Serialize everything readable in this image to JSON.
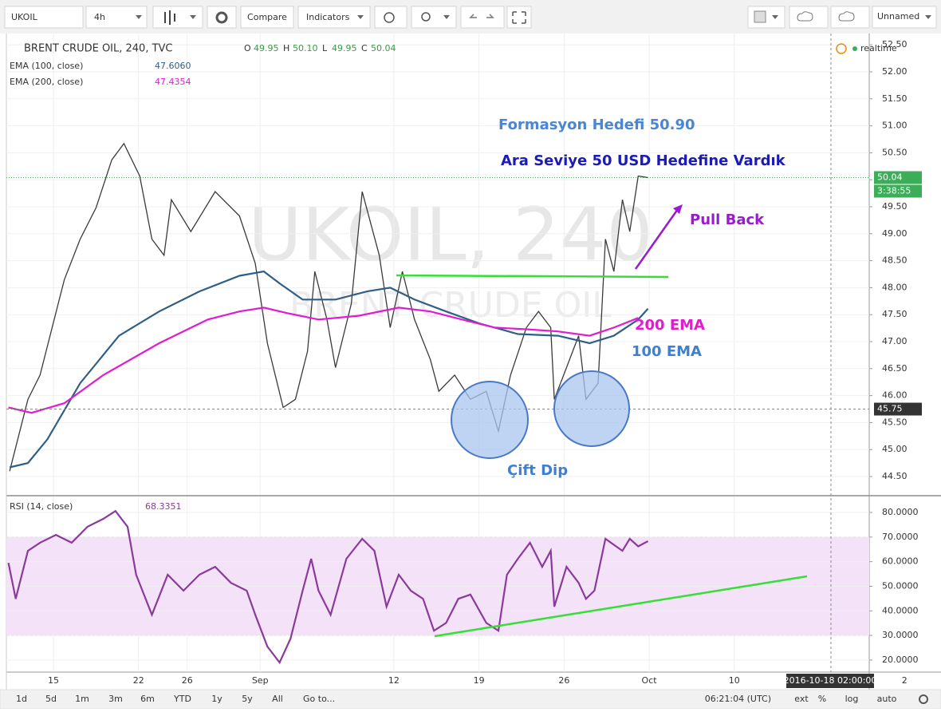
{
  "toolbar": {
    "symbol": "UKOIL",
    "interval": "4h",
    "compare": "Compare",
    "indicators": "Indicators",
    "layout": "Unnamed"
  },
  "chart_data": [
    {
      "type": "line",
      "title": "BRENT CRUDE OIL, 240, TVC",
      "ohlc": [
        {
          "label": "O",
          "value": "49.95"
        },
        {
          "label": "H",
          "value": "50.10"
        },
        {
          "label": "L",
          "value": "49.95"
        },
        {
          "label": "C",
          "value": "50.04"
        }
      ],
      "status": "realtime",
      "watermark": {
        "symbol": "UKOIL, 240",
        "name": "BRENT CRUDE OIL"
      },
      "xlim": [
        11.13,
        82.1
      ],
      "xticks": [
        {
          "value": 15,
          "label": "15"
        },
        {
          "value": 22,
          "label": "22"
        },
        {
          "value": 26,
          "label": "26"
        },
        {
          "value": 32,
          "label": "Sep"
        },
        {
          "value": 43,
          "label": "12"
        },
        {
          "value": 50,
          "label": "19"
        },
        {
          "value": 57,
          "label": "26"
        },
        {
          "value": 64,
          "label": "Oct"
        },
        {
          "value": 71,
          "label": "10"
        },
        {
          "value": 85,
          "label": "2"
        }
      ],
      "ylim": [
        44.16,
        52.71
      ],
      "yticks": [
        {
          "value": 44.5,
          "label": "44.50"
        },
        {
          "value": 45,
          "label": "45.00"
        },
        {
          "value": 45.5,
          "label": "45.50"
        },
        {
          "value": 46,
          "label": "46.00"
        },
        {
          "value": 46.5,
          "label": "46.50"
        },
        {
          "value": 47,
          "label": "47.00"
        },
        {
          "value": 47.5,
          "label": "47.50"
        },
        {
          "value": 48,
          "label": "48.00"
        },
        {
          "value": 48.5,
          "label": "48.50"
        },
        {
          "value": 49,
          "label": "49.00"
        },
        {
          "value": 49.5,
          "label": "49.50"
        },
        {
          "value": 50,
          "label": "50.00"
        },
        {
          "value": 50.5,
          "label": "50.50"
        },
        {
          "value": 51,
          "label": "51.00"
        },
        {
          "value": 51.5,
          "label": "51.50"
        },
        {
          "value": 52,
          "label": "52.00"
        },
        {
          "value": 52.5,
          "label": "52.50"
        }
      ],
      "grid": true,
      "series": [
        {
          "color": "#3a3a3a",
          "x": [
            11.4,
            12.9,
            13.9,
            15.9,
            17.2,
            18.5,
            19.8,
            20.8,
            22.1,
            23.1,
            24.1,
            24.7,
            26.3,
            28.3,
            30.3,
            31.6,
            32.6,
            33.9,
            34.9,
            35.9,
            36.5,
            37.5,
            38.2,
            39.5,
            40.4,
            41.8,
            42.7,
            43.7,
            44.7,
            46.0,
            46.7,
            48.0,
            49.3,
            50.6,
            51.6,
            52.6,
            53.9,
            54.9,
            55.9,
            56.2,
            57.2,
            58.2,
            58.8,
            59.8,
            60.4,
            61.1,
            61.8,
            62.4,
            63.1,
            63.9
          ],
          "values": [
            44.6,
            45.93,
            46.38,
            48.15,
            48.9,
            49.48,
            50.37,
            50.67,
            50.07,
            48.9,
            48.6,
            49.63,
            49.04,
            49.78,
            49.33,
            48.45,
            46.97,
            45.78,
            45.93,
            46.82,
            48.3,
            47.41,
            46.52,
            47.7,
            49.78,
            48.6,
            47.26,
            48.3,
            47.41,
            46.67,
            46.08,
            46.38,
            45.93,
            46.08,
            45.34,
            46.38,
            47.26,
            47.56,
            47.26,
            45.93,
            46.52,
            47.11,
            45.93,
            46.23,
            48.9,
            48.3,
            49.63,
            49.04,
            50.07,
            50.04
          ]
        },
        {
          "name": "EMA (100, close)",
          "legend_value": "47.6060",
          "color": "#2f5f86",
          "x": [
            11.4,
            12.9,
            14.5,
            17.2,
            20.4,
            23.7,
            27.0,
            30.3,
            32.3,
            33.6,
            35.5,
            38.2,
            40.8,
            42.7,
            44.7,
            47.3,
            50.0,
            53.2,
            56.5,
            59.1,
            61.1,
            63.1,
            63.9
          ],
          "values": [
            44.67,
            44.75,
            45.19,
            46.23,
            47.11,
            47.56,
            47.93,
            48.22,
            48.3,
            48.08,
            47.78,
            47.78,
            47.93,
            48.0,
            47.78,
            47.56,
            47.34,
            47.14,
            47.11,
            46.97,
            47.11,
            47.41,
            47.61
          ]
        },
        {
          "name": "EMA (200, close)",
          "legend_value": "47.4354",
          "color": "#e01cd0",
          "x": [
            11.3,
            13.2,
            15.9,
            19.1,
            23.7,
            27.7,
            30.3,
            32.3,
            34.2,
            36.8,
            40.1,
            43.4,
            46.0,
            48.6,
            51.3,
            53.9,
            56.5,
            59.1,
            61.1,
            63.1
          ],
          "values": [
            45.78,
            45.68,
            45.86,
            46.38,
            46.97,
            47.41,
            47.56,
            47.63,
            47.53,
            47.41,
            47.48,
            47.63,
            47.56,
            47.41,
            47.26,
            47.23,
            47.19,
            47.11,
            47.26,
            47.44
          ]
        }
      ],
      "last_price": 50.04,
      "countdown": "3:38:55",
      "crosshair_price": 45.75,
      "crosshair_time": "2016-10-18 02:00:00",
      "annotations": [
        {
          "text": "Formasyon Hedefi 50.90",
          "color": "#4a86d4"
        },
        {
          "text": "Ara Seviye 50 USD Hedefine Vardık",
          "color": "#1b1bb8"
        },
        {
          "text": "Pull Back",
          "color": "#9a1ad0"
        },
        {
          "text": "200 EMA",
          "color": "#e01cd0"
        },
        {
          "text": "100 EMA",
          "color": "#3f7fd0"
        },
        {
          "text": "Çift Dip",
          "color": "#3f7fd0"
        }
      ]
    },
    {
      "type": "line",
      "series": [
        {
          "name": "RSI (14, close)",
          "legend_value": "68.3351",
          "color": "#8a3a9a",
          "x": [
            11.3,
            11.9,
            12.9,
            13.9,
            15.2,
            16.5,
            17.8,
            19.1,
            20.1,
            21.1,
            21.8,
            23.1,
            24.4,
            25.7,
            27.0,
            28.3,
            29.6,
            30.9,
            31.6,
            32.6,
            33.6,
            34.5,
            35.5,
            36.2,
            36.8,
            37.8,
            39.1,
            40.4,
            41.4,
            42.4,
            43.4,
            44.4,
            45.4,
            46.3,
            47.3,
            48.3,
            49.3,
            50.6,
            51.6,
            52.3,
            53.2,
            54.2,
            55.2,
            55.9,
            56.2,
            57.2,
            58.2,
            58.8,
            59.5,
            60.4,
            61.8,
            62.4,
            63.1,
            63.9
          ],
          "values": [
            59.5,
            44.9,
            64.4,
            67.7,
            70.9,
            67.7,
            74.2,
            77.4,
            80.6,
            74.2,
            54.7,
            38.4,
            54.7,
            48.2,
            54.7,
            57.9,
            51.4,
            48.2,
            38.4,
            25.5,
            19.0,
            28.7,
            48.2,
            61.2,
            48.2,
            38.4,
            61.2,
            69.3,
            64.4,
            41.7,
            54.7,
            48.2,
            44.9,
            31.9,
            35.1,
            44.9,
            46.6,
            35.1,
            31.9,
            54.7,
            61.2,
            67.7,
            57.9,
            64.4,
            41.7,
            57.9,
            51.4,
            44.9,
            48.2,
            69.3,
            64.4,
            69.3,
            66.2,
            68.34
          ]
        }
      ],
      "ylim": [
        15.1,
        86.5
      ],
      "yticks": [
        {
          "value": 20,
          "label": "20.0000"
        },
        {
          "value": 30,
          "label": "30.0000"
        },
        {
          "value": 40,
          "label": "40.0000"
        },
        {
          "value": 50,
          "label": "50.0000"
        },
        {
          "value": 60,
          "label": "60.0000"
        },
        {
          "value": 70,
          "label": "70.0000"
        },
        {
          "value": 80,
          "label": "80.0000"
        }
      ],
      "band": [
        30,
        70
      ],
      "band_color": "#f4e2f8"
    }
  ],
  "footer": {
    "ranges": [
      "1d",
      "5d",
      "1m",
      "3m",
      "6m",
      "YTD",
      "1y",
      "5y",
      "All"
    ],
    "goto": "Go to...",
    "clock": "06:21:04 (UTC)",
    "options": [
      "ext",
      "%",
      "log",
      "auto"
    ]
  }
}
